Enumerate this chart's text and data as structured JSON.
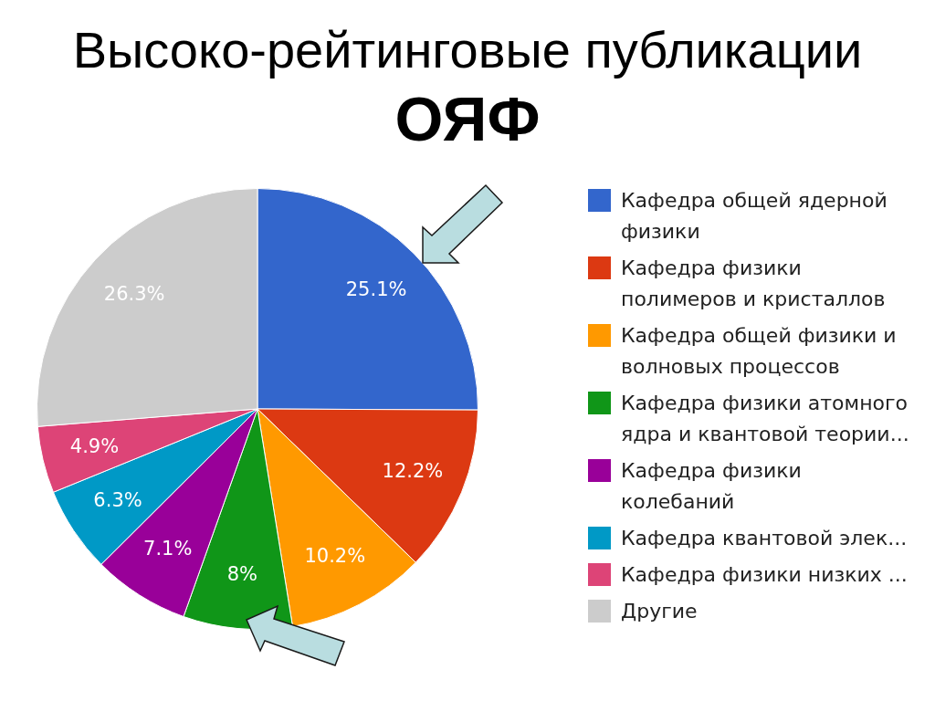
{
  "chart_data": {
    "type": "pie",
    "title": "Высоко-рейтинговые публикации",
    "subtitle": "ОЯФ",
    "categories": [
      "Кафедра общей ядерной физики",
      "Кафедра физики полимеров и кристаллов",
      "Кафедра общей физики и волновых процессов",
      "Кафедра физики атомного ядра и квантовой теории...",
      "Кафедра физики колебаний",
      "Кафедра квантовой элек...",
      "Кафедра физики низких ...",
      "Другие"
    ],
    "values": [
      25.1,
      12.2,
      10.2,
      8,
      7.1,
      6.3,
      4.9,
      26.3
    ],
    "colors": [
      "#3366cc",
      "#dc3912",
      "#ff9900",
      "#109618",
      "#990099",
      "#0099c6",
      "#dd4477",
      "#cccccc"
    ],
    "value_labels": [
      "25.1%",
      "12.2%",
      "10.2%",
      "8%",
      "7.1%",
      "6.3%",
      "4.9%",
      "26.3%"
    ],
    "legend": "right"
  }
}
